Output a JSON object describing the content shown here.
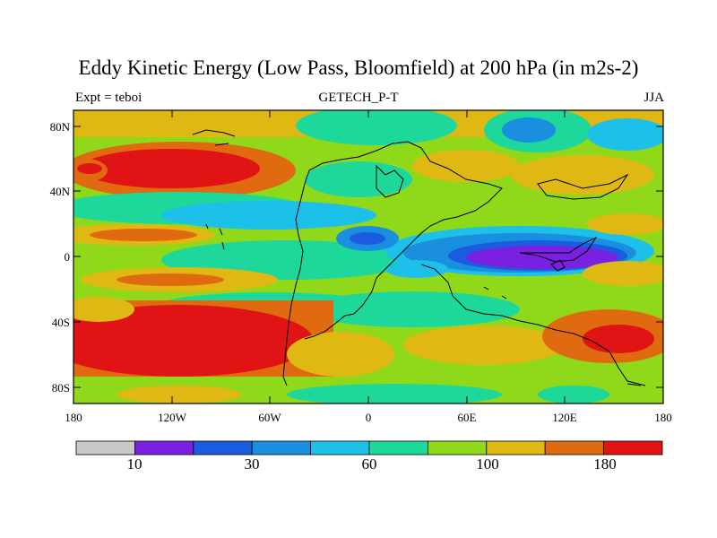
{
  "title": "Eddy Kinetic Energy (Low Pass, Bloomfield) at 200 hPa (in m2s-2)",
  "subtitle_left": "Expt = teboi",
  "subtitle_center": "GETECH_P-T",
  "subtitle_right": "JJA",
  "lat_ticks": [
    "80N",
    "40N",
    "0",
    "40S",
    "80S"
  ],
  "lon_ticks": [
    "180",
    "120W",
    "60W",
    "0",
    "60E",
    "120E",
    "180"
  ],
  "colorbar": {
    "colors": [
      "#c8c8c8",
      "#7a20e0",
      "#1a5be0",
      "#1a8fe0",
      "#1cc0e8",
      "#1ed79a",
      "#8fd81a",
      "#e0b814",
      "#e06a10",
      "#e01414"
    ],
    "labels": [
      "10",
      "30",
      "60",
      "100",
      "180"
    ]
  }
}
